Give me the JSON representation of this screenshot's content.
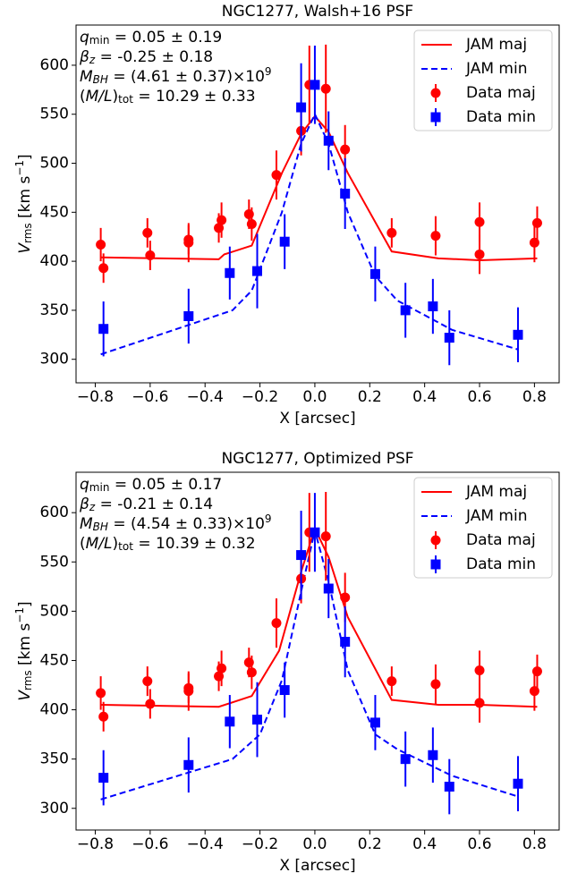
{
  "chart_data": [
    {
      "type": "errorbar",
      "title": "NGC1277, Walsh+16 PSF",
      "xlabel": "X [arcsec]",
      "ylabel": [
        {
          "t": "V",
          "italic": true
        },
        {
          "t": "rms",
          "sub": true
        },
        {
          "t": " [km s"
        },
        {
          "t": "−1",
          "sup": true
        },
        {
          "t": "]"
        }
      ],
      "annotations": [
        [
          {
            "t": "q",
            "italic": true
          },
          {
            "t": "min",
            "sub": true
          },
          {
            "t": " = 0.05 ± 0.19"
          }
        ],
        [
          {
            "t": "β",
            "italic": true
          },
          {
            "t": "z",
            "sub": true,
            "italic": true
          },
          {
            "t": " = -0.25 ± 0.18"
          }
        ],
        [
          {
            "t": "M",
            "italic": true
          },
          {
            "t": "BH",
            "sub": true,
            "italic": true
          },
          {
            "t": " = (4.61 ± 0.37)×10"
          },
          {
            "t": "9",
            "sup": true
          }
        ],
        [
          {
            "t": "("
          },
          {
            "t": "M/L",
            "italic": true
          },
          {
            "t": ")"
          },
          {
            "t": "tot",
            "sub": true
          },
          {
            "t": " = 10.29 ± 0.33"
          }
        ]
      ],
      "xlim": [
        -0.87,
        0.89
      ],
      "ylim": [
        276,
        641
      ],
      "xticks": [
        {
          "value": -0.8,
          "label": "−0.8"
        },
        {
          "value": -0.6,
          "label": "−0.6"
        },
        {
          "value": -0.4,
          "label": "−0.4"
        },
        {
          "value": -0.2,
          "label": "−0.2"
        },
        {
          "value": 0,
          "label": "0.0"
        },
        0.2,
        0.4,
        0.6,
        0.8
      ],
      "yticks": [
        300,
        350,
        400,
        450,
        500,
        550,
        600
      ],
      "legend": "upper right",
      "series": [
        {
          "name": "JAM maj",
          "kind": "line",
          "dash": false,
          "color": "#ff0000",
          "x": [
            -0.78,
            -0.35,
            -0.33,
            -0.23,
            -0.12,
            -0.05,
            0,
            0.05,
            0.12,
            0.28,
            0.45,
            0.6,
            0.81
          ],
          "values": [
            404,
            402,
            407,
            416,
            490,
            530,
            548,
            532,
            490,
            410,
            403,
            401,
            403
          ]
        },
        {
          "name": "JAM min",
          "kind": "line",
          "dash": true,
          "color": "#0000ff",
          "x": [
            -0.78,
            -0.3,
            -0.23,
            -0.12,
            -0.05,
            0,
            0.05,
            0.12,
            0.22,
            0.3,
            0.5,
            0.74
          ],
          "values": [
            305,
            350,
            370,
            450,
            520,
            550,
            520,
            450,
            385,
            360,
            330,
            310
          ]
        },
        {
          "name": "Data maj",
          "kind": "points",
          "marker": "circle",
          "color": "#ff0000",
          "x": [
            -0.78,
            -0.77,
            -0.61,
            -0.6,
            -0.46,
            -0.46,
            -0.35,
            -0.34,
            -0.24,
            -0.23,
            -0.14,
            -0.05,
            -0.02,
            0.04,
            0.11,
            0.28,
            0.44,
            0.6,
            0.6,
            0.81,
            0.8
          ],
          "values": [
            417,
            393,
            429,
            406,
            422,
            419,
            434,
            442,
            448,
            438,
            488,
            533,
            580,
            576,
            514,
            429,
            426,
            440,
            407,
            439,
            419
          ],
          "errors": [
            17,
            15,
            15,
            15,
            15,
            20,
            15,
            18,
            15,
            17,
            25,
            25,
            40,
            45,
            25,
            15,
            20,
            20,
            20,
            17,
            20
          ]
        },
        {
          "name": "Data min",
          "kind": "points",
          "marker": "square",
          "color": "#0000ff",
          "x": [
            -0.77,
            -0.46,
            -0.31,
            -0.21,
            -0.11,
            -0.05,
            0,
            0.05,
            0.11,
            0.22,
            0.33,
            0.43,
            0.49,
            0.74
          ],
          "values": [
            331,
            344,
            388,
            390,
            420,
            557,
            580,
            523,
            469,
            387,
            350,
            354,
            322,
            325
          ],
          "errors": [
            28,
            28,
            27,
            38,
            28,
            45,
            40,
            30,
            36,
            28,
            28,
            28,
            28,
            28
          ]
        }
      ]
    },
    {
      "type": "errorbar",
      "title": "NGC1277, Optimized PSF",
      "xlabel": "X [arcsec]",
      "ylabel": [
        {
          "t": "V",
          "italic": true
        },
        {
          "t": "rms",
          "sub": true
        },
        {
          "t": " [km s"
        },
        {
          "t": "−1",
          "sup": true
        },
        {
          "t": "]"
        }
      ],
      "annotations": [
        [
          {
            "t": "q",
            "italic": true
          },
          {
            "t": "min",
            "sub": true
          },
          {
            "t": " = 0.05 ± 0.17"
          }
        ],
        [
          {
            "t": "β",
            "italic": true
          },
          {
            "t": "z",
            "sub": true,
            "italic": true
          },
          {
            "t": " = -0.21 ± 0.14"
          }
        ],
        [
          {
            "t": "M",
            "italic": true
          },
          {
            "t": "BH",
            "sub": true,
            "italic": true
          },
          {
            "t": " = (4.54 ± 0.33)×10"
          },
          {
            "t": "9",
            "sup": true
          }
        ],
        [
          {
            "t": "("
          },
          {
            "t": "M/L",
            "italic": true
          },
          {
            "t": ")"
          },
          {
            "t": "tot",
            "sub": true
          },
          {
            "t": " = 10.39 ± 0.32"
          }
        ]
      ],
      "xlim": [
        -0.87,
        0.89
      ],
      "ylim": [
        278,
        641
      ],
      "xticks": [
        {
          "value": -0.8,
          "label": "−0.8"
        },
        {
          "value": -0.6,
          "label": "−0.6"
        },
        {
          "value": -0.4,
          "label": "−0.4"
        },
        {
          "value": -0.2,
          "label": "−0.2"
        },
        {
          "value": 0,
          "label": "0.0"
        },
        0.2,
        0.4,
        0.6,
        0.8
      ],
      "yticks": [
        300,
        350,
        400,
        450,
        500,
        550,
        600
      ],
      "legend": "upper right",
      "series": [
        {
          "name": "JAM maj",
          "kind": "line",
          "dash": false,
          "color": "#ff0000",
          "x": [
            -0.78,
            -0.35,
            -0.23,
            -0.13,
            -0.05,
            0,
            0.05,
            0.12,
            0.28,
            0.45,
            0.6,
            0.81
          ],
          "values": [
            405,
            403,
            414,
            460,
            540,
            584,
            555,
            494,
            410,
            405,
            405,
            403
          ]
        },
        {
          "name": "JAM min",
          "kind": "line",
          "dash": true,
          "color": "#0000ff",
          "x": [
            -0.78,
            -0.3,
            -0.2,
            -0.12,
            -0.05,
            0,
            0.05,
            0.12,
            0.22,
            0.3,
            0.5,
            0.74
          ],
          "values": [
            309,
            350,
            375,
            430,
            520,
            582,
            530,
            440,
            375,
            360,
            333,
            312
          ]
        },
        {
          "name": "Data maj",
          "kind": "points",
          "marker": "circle",
          "color": "#ff0000",
          "x": [
            -0.78,
            -0.77,
            -0.61,
            -0.6,
            -0.46,
            -0.46,
            -0.35,
            -0.34,
            -0.24,
            -0.23,
            -0.14,
            -0.05,
            -0.02,
            0.04,
            0.11,
            0.28,
            0.44,
            0.6,
            0.6,
            0.81,
            0.8
          ],
          "values": [
            417,
            393,
            429,
            406,
            422,
            419,
            434,
            442,
            448,
            438,
            488,
            533,
            580,
            576,
            514,
            429,
            426,
            440,
            407,
            439,
            419
          ],
          "errors": [
            17,
            15,
            15,
            15,
            15,
            20,
            15,
            18,
            15,
            17,
            25,
            25,
            40,
            45,
            25,
            15,
            20,
            20,
            20,
            17,
            20
          ]
        },
        {
          "name": "Data min",
          "kind": "points",
          "marker": "square",
          "color": "#0000ff",
          "x": [
            -0.77,
            -0.46,
            -0.31,
            -0.21,
            -0.11,
            -0.05,
            0,
            0.05,
            0.11,
            0.22,
            0.33,
            0.43,
            0.49,
            0.74
          ],
          "values": [
            331,
            344,
            388,
            390,
            420,
            557,
            580,
            523,
            469,
            387,
            350,
            354,
            322,
            325
          ],
          "errors": [
            28,
            28,
            27,
            38,
            28,
            45,
            40,
            30,
            36,
            28,
            28,
            28,
            28,
            28
          ]
        }
      ]
    }
  ]
}
